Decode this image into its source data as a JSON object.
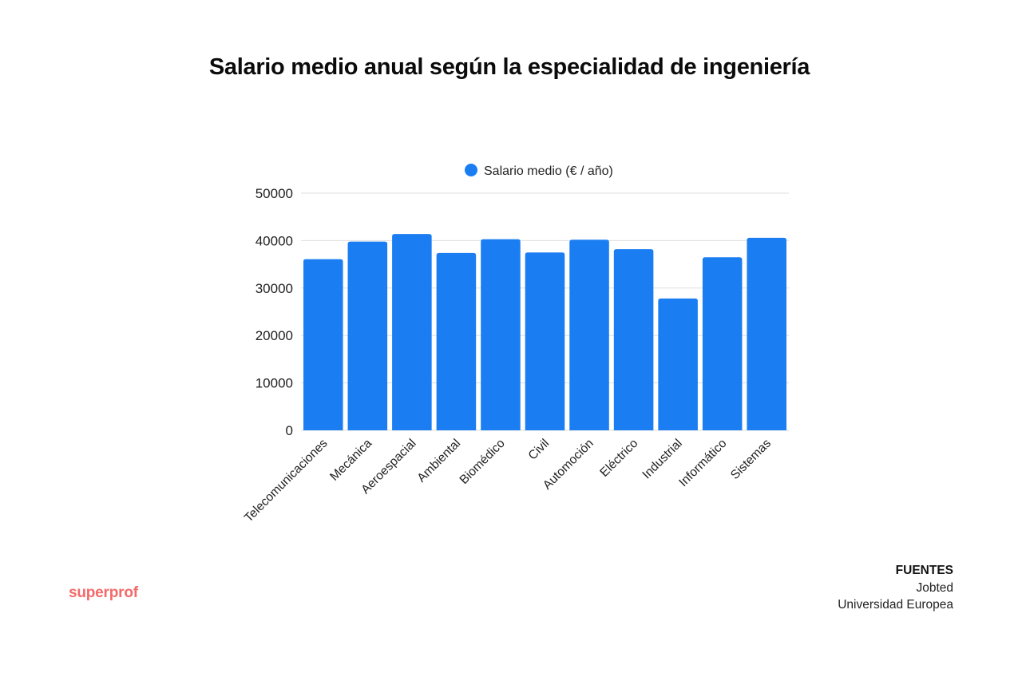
{
  "page": {
    "title": "Salario medio anual según la especialidad de ingeniería",
    "brand": "superprof",
    "sources": {
      "heading": "FUENTES",
      "items": [
        "Jobted",
        "Universidad Europea"
      ]
    }
  },
  "chart_data": {
    "type": "bar",
    "title": "Salario medio anual según la especialidad de ingeniería",
    "xlabel": "",
    "ylabel": "",
    "categories": [
      "Telecomunicaciones",
      "Mecánica",
      "Aeroespacial",
      "Ambiental",
      "Biomédico",
      "Civil",
      "Automoción",
      "Eléctrico",
      "Industrial",
      "Informático",
      "Sistemas"
    ],
    "series": [
      {
        "name": "Salario medio (€ / año)",
        "color": "#1a7ef2",
        "values": [
          36100,
          39800,
          41400,
          37400,
          40300,
          37500,
          40200,
          38200,
          27800,
          36500,
          40600
        ]
      }
    ],
    "ylim": [
      0,
      50000
    ],
    "yticks": [
      0,
      10000,
      20000,
      30000,
      40000,
      50000
    ],
    "grid": true,
    "legend_position": "top-center"
  }
}
